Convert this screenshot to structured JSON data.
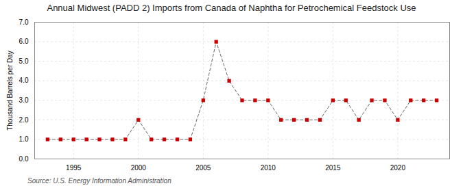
{
  "chart_data": {
    "type": "line",
    "title": "Annual Midwest (PADD 2) Imports from Canada of Naphtha for Petrochemical Feedstock Use",
    "ylabel": "Thousand Barrels per Day",
    "source": "Source: U.S. Energy Information Administration",
    "x": [
      1993,
      1994,
      1995,
      1996,
      1997,
      1998,
      1999,
      2000,
      2001,
      2002,
      2003,
      2004,
      2005,
      2006,
      2007,
      2008,
      2009,
      2010,
      2011,
      2012,
      2013,
      2014,
      2015,
      2016,
      2017,
      2018,
      2019,
      2020,
      2021,
      2022,
      2023
    ],
    "values": [
      1,
      1,
      1,
      1,
      1,
      1,
      1,
      2,
      1,
      1,
      1,
      1,
      3,
      6,
      4,
      3,
      3,
      3,
      2,
      2,
      2,
      2,
      3,
      3,
      2,
      3,
      3,
      2,
      3,
      3,
      3
    ],
    "color": "#cc0000",
    "marker": "square",
    "line_style": "dashed",
    "xlim": [
      1992,
      2024
    ],
    "xticks": [
      1995,
      2000,
      2005,
      2010,
      2015,
      2020
    ],
    "ylim": [
      0,
      7
    ],
    "yticks": [
      0,
      1,
      2,
      3,
      4,
      5,
      6,
      7
    ],
    "grid": true
  }
}
